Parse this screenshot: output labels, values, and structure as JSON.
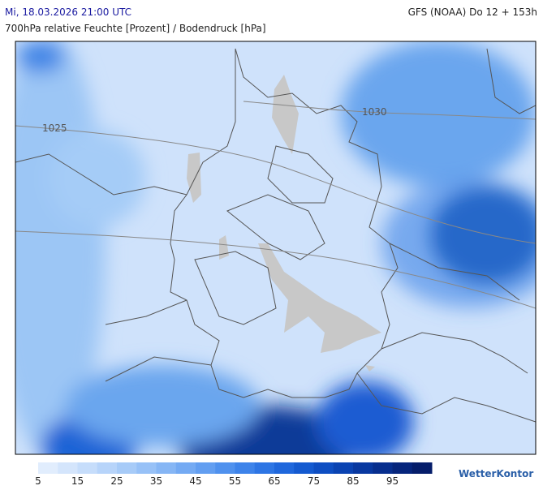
{
  "header": {
    "datetime": "Mi, 18.03.2026 21:00 UTC",
    "model": "GFS (NOAA) Do 12 + 153h",
    "title": "700hPa relative Feuchte [Prozent] / Bodendruck [hPa]"
  },
  "isobars": [
    {
      "label": "1025"
    },
    {
      "label": "1030"
    }
  ],
  "legend": {
    "range": [
      5,
      105
    ],
    "ticks": [
      5,
      15,
      25,
      35,
      45,
      55,
      65,
      75,
      85,
      95
    ],
    "colors": [
      "#e1edfd",
      "#d4e5fc",
      "#c6ddfb",
      "#b7d4fa",
      "#a7cbf8",
      "#97c1f7",
      "#86b6f5",
      "#74aaf3",
      "#629ef1",
      "#4f91ee",
      "#3d83ea",
      "#2d75e4",
      "#1f67dc",
      "#145ad0",
      "#0e4ec2",
      "#0a43b2",
      "#0838a0",
      "#072e8e",
      "#06257c",
      "#051d6a"
    ]
  },
  "brand": "WetterKontor"
}
